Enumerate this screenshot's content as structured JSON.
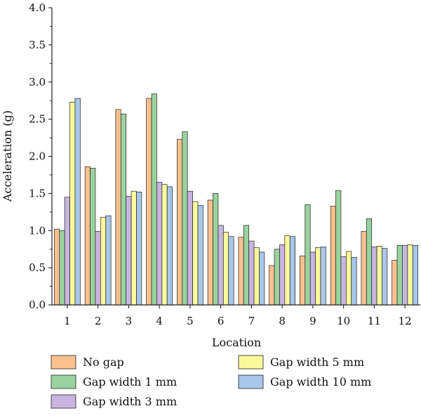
{
  "chart_data": {
    "type": "bar",
    "title": "",
    "xlabel": "Location",
    "ylabel": "Acceleration (g)",
    "ylim": [
      0,
      4.0
    ],
    "yticks": [
      "0.0",
      "0.5",
      "1.0",
      "1.5",
      "2.0",
      "2.5",
      "3.0",
      "3.5",
      "4.0"
    ],
    "categories": [
      "1",
      "2",
      "3",
      "4",
      "5",
      "6",
      "7",
      "8",
      "9",
      "10",
      "11",
      "12"
    ],
    "legend_position": "bottom",
    "grid": false,
    "series": [
      {
        "name": "No gap",
        "color": "#f8c18e",
        "values": [
          1.02,
          1.86,
          2.63,
          2.78,
          2.23,
          1.41,
          0.91,
          0.53,
          0.66,
          1.33,
          0.99,
          0.6
        ]
      },
      {
        "name": "Gap width 1 mm",
        "color": "#99d39e",
        "values": [
          1.0,
          1.84,
          2.57,
          2.84,
          2.33,
          1.5,
          1.07,
          0.75,
          1.35,
          1.54,
          1.16,
          0.8
        ]
      },
      {
        "name": "Gap width 3 mm",
        "color": "#c8b5e2",
        "values": [
          1.45,
          0.99,
          1.46,
          1.65,
          1.53,
          1.07,
          0.86,
          0.81,
          0.71,
          0.65,
          0.78,
          0.8
        ]
      },
      {
        "name": "Gap width 5 mm",
        "color": "#fafa9c",
        "values": [
          2.73,
          1.18,
          1.53,
          1.62,
          1.39,
          0.98,
          0.77,
          0.93,
          0.77,
          0.72,
          0.79,
          0.81
        ]
      },
      {
        "name": "Gap width 10 mm",
        "color": "#a8c7ea",
        "values": [
          2.78,
          1.2,
          1.52,
          1.59,
          1.34,
          0.92,
          0.71,
          0.92,
          0.78,
          0.64,
          0.76,
          0.8
        ]
      }
    ]
  }
}
